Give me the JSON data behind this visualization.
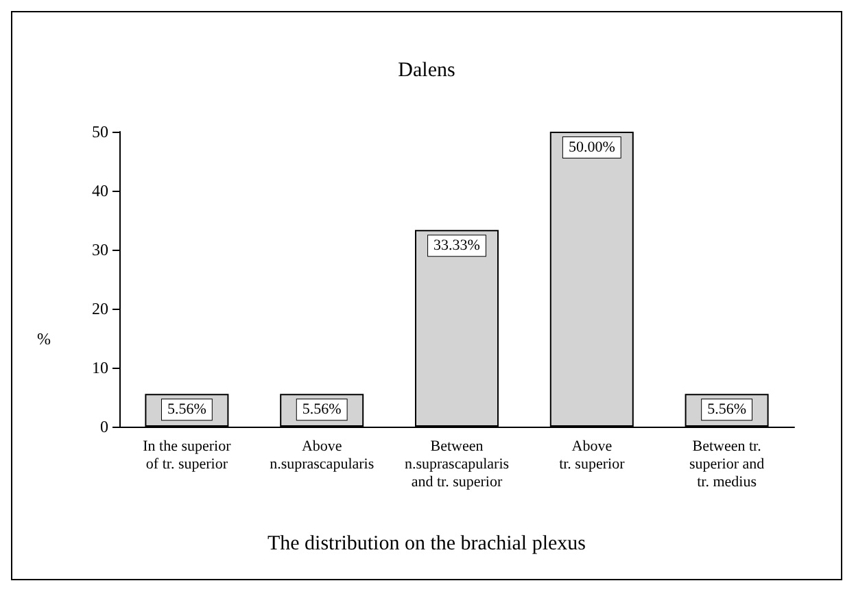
{
  "chart_data": {
    "type": "bar",
    "title": "Dalens",
    "xlabel": "The distribution on the brachial plexus",
    "ylabel": "%",
    "categories": [
      "In the superior\nof tr. superior",
      "Above\nn.suprascapularis",
      "Between\nn.suprascapularis\nand tr. superior",
      "Above\ntr. superior",
      "Between tr.\nsuperior and\ntr. medius"
    ],
    "values": [
      5.56,
      5.56,
      33.33,
      50.0,
      5.56
    ],
    "value_labels": [
      "5.56%",
      "5.56%",
      "33.33%",
      "50.00%",
      "5.56%"
    ],
    "color": "#d3d3d3",
    "ylim": [
      0,
      50
    ],
    "yticks": [
      0,
      10,
      20,
      30,
      40,
      50
    ],
    "grid": false
  }
}
